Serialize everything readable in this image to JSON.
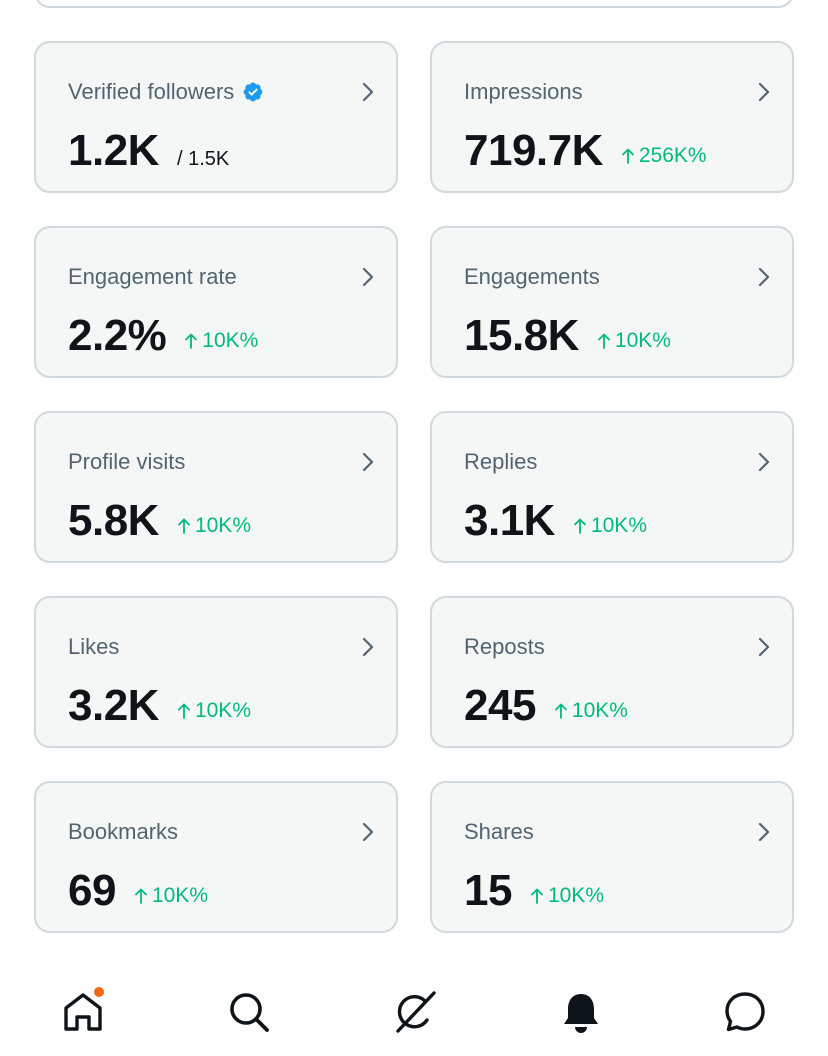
{
  "colors": {
    "accent_positive": "#00ba7c",
    "verified_blue": "#1d9bf0",
    "notification_dot": "#f4670b"
  },
  "metrics": [
    {
      "label": "Verified followers",
      "value": "1.2K",
      "sub": "/ 1.5K",
      "change": "",
      "verified": true
    },
    {
      "label": "Impressions",
      "value": "719.7K",
      "sub": "",
      "change": "256K%"
    },
    {
      "label": "Engagement rate",
      "value": "2.2%",
      "sub": "",
      "change": "10K%"
    },
    {
      "label": "Engagements",
      "value": "15.8K",
      "sub": "",
      "change": "10K%"
    },
    {
      "label": "Profile visits",
      "value": "5.8K",
      "sub": "",
      "change": "10K%"
    },
    {
      "label": "Replies",
      "value": "3.1K",
      "sub": "",
      "change": "10K%"
    },
    {
      "label": "Likes",
      "value": "3.2K",
      "sub": "",
      "change": "10K%"
    },
    {
      "label": "Reposts",
      "value": "245",
      "sub": "",
      "change": "10K%"
    },
    {
      "label": "Bookmarks",
      "value": "69",
      "sub": "",
      "change": "10K%"
    },
    {
      "label": "Shares",
      "value": "15",
      "sub": "",
      "change": "10K%"
    }
  ],
  "nav": {
    "items": [
      {
        "icon": "home-icon",
        "has_dot": true
      },
      {
        "icon": "search-icon",
        "has_dot": false
      },
      {
        "icon": "grok-icon",
        "has_dot": false
      },
      {
        "icon": "bell-icon",
        "has_dot": false
      },
      {
        "icon": "messages-icon",
        "has_dot": false
      }
    ]
  }
}
